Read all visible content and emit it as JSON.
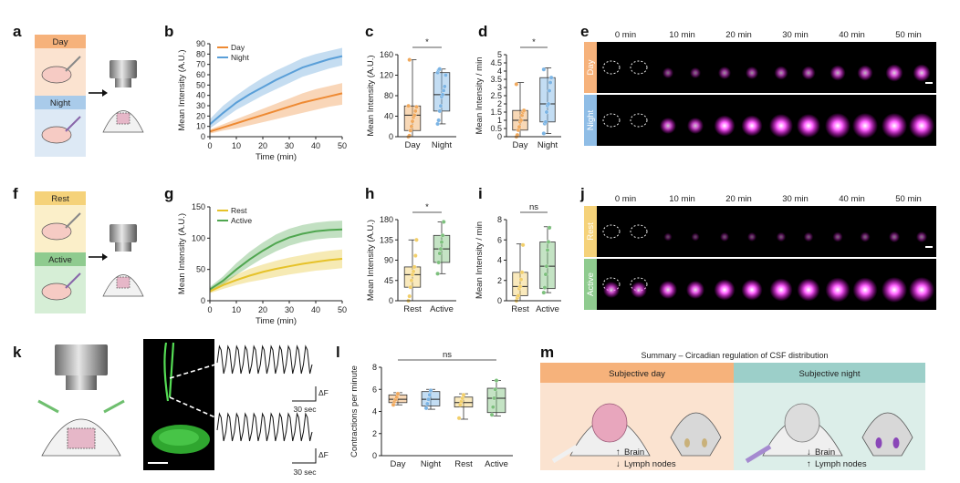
{
  "panel_labels": [
    "a",
    "b",
    "c",
    "d",
    "e",
    "f",
    "g",
    "h",
    "i",
    "j",
    "k",
    "l",
    "m"
  ],
  "schematics": {
    "a": {
      "top": "Day",
      "bottom": "Night"
    },
    "f": {
      "top": "Rest",
      "bottom": "Active"
    },
    "scale_time": "30 sec",
    "delta_f": "ΔF"
  },
  "imaging": {
    "times": [
      "0 min",
      "10 min",
      "20 min",
      "30 min",
      "40 min",
      "50 min"
    ],
    "e_rows": [
      "Day",
      "Night"
    ],
    "j_rows": [
      "Rest",
      "Active"
    ],
    "e_intensity": [
      [
        0,
        0.2,
        0.3,
        0.35,
        0.45,
        0.55
      ],
      [
        0,
        0.5,
        0.75,
        0.9,
        1.0,
        1.0
      ]
    ],
    "j_intensity": [
      [
        0,
        0.05,
        0.1,
        0.12,
        0.15,
        0.2
      ],
      [
        0.5,
        0.6,
        0.75,
        0.85,
        0.95,
        1.0
      ]
    ]
  },
  "summary": {
    "title": "Summary – Circadian regulation of CSF distribution",
    "day_header": "Subjective day",
    "night_header": "Subjective night",
    "day_brain": "Brain",
    "day_nodes": "Lymph nodes",
    "night_brain": "Brain",
    "night_nodes": "Lymph nodes",
    "day_brain_arrow": "↑",
    "day_nodes_arrow": "↓",
    "night_brain_arrow": "↓",
    "night_nodes_arrow": "↑"
  },
  "chart_data": [
    {
      "id": "b",
      "type": "line",
      "xlabel": "Time (min)",
      "ylabel": "Mean Intensity (A.U.)",
      "xlim": [
        0,
        50
      ],
      "ylim": [
        0,
        90
      ],
      "xticks": [
        0,
        10,
        20,
        30,
        40,
        50
      ],
      "yticks": [
        0,
        10,
        20,
        30,
        40,
        50,
        60,
        70,
        80,
        90
      ],
      "legend": "top-left",
      "x": [
        0,
        5,
        10,
        15,
        20,
        25,
        30,
        35,
        40,
        45,
        50
      ],
      "series": [
        {
          "name": "Day",
          "color": "#ee8a33",
          "values": [
            5,
            9,
            13,
            17,
            21,
            25,
            29,
            33,
            36,
            39,
            42
          ],
          "lower": [
            3,
            6,
            8,
            11,
            14,
            17,
            20,
            23,
            26,
            29,
            31
          ],
          "upper": [
            7,
            12,
            17,
            22,
            27,
            32,
            37,
            42,
            46,
            49,
            52
          ]
        },
        {
          "name": "Night",
          "color": "#5a9fd8",
          "values": [
            12,
            23,
            33,
            41,
            48,
            55,
            61,
            67,
            71,
            75,
            78
          ],
          "lower": [
            8,
            17,
            26,
            33,
            40,
            46,
            52,
            58,
            62,
            66,
            69
          ],
          "upper": [
            17,
            30,
            40,
            49,
            57,
            64,
            70,
            76,
            80,
            83,
            86
          ]
        }
      ]
    },
    {
      "id": "c",
      "type": "box",
      "ylabel": "Mean Intensity (A.U.)",
      "ylim": [
        0,
        160
      ],
      "yticks": [
        0,
        40,
        80,
        120,
        160
      ],
      "categories": [
        "Day",
        "Night"
      ],
      "significance": "*",
      "boxes": [
        {
          "color": "#f0a95e",
          "min": 0,
          "q1": 12,
          "median": 42,
          "q3": 60,
          "max": 150,
          "points": [
            0,
            2,
            12,
            20,
            30,
            38,
            42,
            50,
            58,
            60,
            150
          ]
        },
        {
          "color": "#7bb4e4",
          "min": 25,
          "q1": 50,
          "median": 82,
          "q3": 125,
          "max": 132,
          "points": [
            25,
            32,
            50,
            60,
            78,
            82,
            90,
            98,
            120,
            125,
            130,
            132
          ]
        }
      ]
    },
    {
      "id": "d",
      "type": "box",
      "ylabel": "Mean Intensity / min",
      "ylim": [
        0,
        5
      ],
      "yticks": [
        0,
        0.5,
        1,
        1.5,
        2,
        2.5,
        3,
        3.5,
        4,
        4.5,
        5
      ],
      "categories": [
        "Day",
        "Night"
      ],
      "significance": "*",
      "boxes": [
        {
          "color": "#f0a95e",
          "min": 0,
          "q1": 0.4,
          "median": 1.0,
          "q3": 1.6,
          "max": 3.3,
          "points": [
            0,
            0.1,
            0.4,
            0.6,
            0.9,
            1.0,
            1.3,
            1.5,
            1.6,
            3.2
          ]
        },
        {
          "color": "#7bb4e4",
          "min": 0.2,
          "q1": 0.9,
          "median": 2.0,
          "q3": 3.6,
          "max": 4.2,
          "points": [
            0.2,
            0.8,
            0.9,
            1.5,
            1.9,
            2.0,
            2.8,
            3.3,
            3.6,
            4.1
          ]
        }
      ]
    },
    {
      "id": "g",
      "type": "line",
      "xlabel": "Time (min)",
      "ylabel": "Mean Intensity (A.U.)",
      "xlim": [
        0,
        50
      ],
      "ylim": [
        0,
        150
      ],
      "xticks": [
        0,
        10,
        20,
        30,
        40,
        50
      ],
      "yticks": [
        0,
        50,
        100,
        150
      ],
      "legend": "top-left",
      "x": [
        0,
        5,
        10,
        15,
        20,
        25,
        30,
        35,
        40,
        45,
        50
      ],
      "series": [
        {
          "name": "Rest",
          "color": "#e6c229",
          "values": [
            15,
            25,
            33,
            40,
            46,
            51,
            55,
            59,
            62,
            65,
            67
          ],
          "lower": [
            12,
            19,
            25,
            30,
            34,
            38,
            42,
            45,
            48,
            50,
            52
          ],
          "upper": [
            18,
            31,
            42,
            51,
            58,
            64,
            69,
            73,
            77,
            80,
            82
          ]
        },
        {
          "name": "Active",
          "color": "#4fa64f",
          "values": [
            18,
            32,
            50,
            66,
            80,
            92,
            101,
            107,
            111,
            113,
            114
          ],
          "lower": [
            15,
            26,
            41,
            55,
            68,
            79,
            88,
            94,
            98,
            100,
            101
          ],
          "upper": [
            22,
            39,
            60,
            78,
            93,
            106,
            115,
            121,
            125,
            127,
            128
          ]
        }
      ]
    },
    {
      "id": "h",
      "type": "box",
      "ylabel": "Mean Intensity (A.U.)",
      "ylim": [
        0,
        180
      ],
      "yticks": [
        0,
        45,
        90,
        135,
        180
      ],
      "categories": [
        "Rest",
        "Active"
      ],
      "significance": "*",
      "boxes": [
        {
          "color": "#f2cf6a",
          "min": 0,
          "q1": 30,
          "median": 58,
          "q3": 75,
          "max": 135,
          "points": [
            0,
            10,
            30,
            45,
            58,
            65,
            75,
            100,
            135
          ]
        },
        {
          "color": "#7dc07d",
          "min": 60,
          "q1": 85,
          "median": 115,
          "q3": 145,
          "max": 175,
          "points": [
            60,
            85,
            105,
            115,
            130,
            145,
            175
          ]
        }
      ]
    },
    {
      "id": "i",
      "type": "box",
      "ylabel": "Mean Intensity / min",
      "ylim": [
        0,
        8
      ],
      "yticks": [
        0,
        2,
        4,
        6,
        8
      ],
      "categories": [
        "Rest",
        "Active"
      ],
      "significance": "ns",
      "boxes": [
        {
          "color": "#f2cf6a",
          "min": 0,
          "q1": 0.5,
          "median": 1.4,
          "q3": 2.8,
          "max": 5.6,
          "points": [
            0,
            0.3,
            0.5,
            1.2,
            1.4,
            2.1,
            2.8,
            5.5
          ]
        },
        {
          "color": "#7dc07d",
          "min": 0.8,
          "q1": 1.2,
          "median": 3.4,
          "q3": 5.8,
          "max": 7.3,
          "points": [
            0.8,
            1.3,
            2.6,
            3.4,
            5.0,
            5.8,
            7.2
          ]
        }
      ]
    },
    {
      "id": "l",
      "type": "box",
      "ylabel": "Contractions per minute",
      "ylim": [
        0,
        8
      ],
      "yticks": [
        0,
        2,
        4,
        6,
        8
      ],
      "categories": [
        "Day",
        "Night",
        "Rest",
        "Active"
      ],
      "significance": "ns",
      "boxes": [
        {
          "color": "#f0a95e",
          "min": 4.6,
          "q1": 4.8,
          "median": 5.1,
          "q3": 5.5,
          "max": 5.7,
          "points": [
            4.6,
            4.9,
            5.1,
            5.3,
            5.6
          ]
        },
        {
          "color": "#7bb4e4",
          "min": 4.2,
          "q1": 4.5,
          "median": 5.1,
          "q3": 5.8,
          "max": 6.0,
          "points": [
            4.3,
            4.7,
            5.1,
            5.5,
            5.9
          ]
        },
        {
          "color": "#f2cf6a",
          "min": 3.3,
          "q1": 4.4,
          "median": 4.8,
          "q3": 5.3,
          "max": 5.6,
          "points": [
            3.4,
            4.6,
            4.9,
            5.2,
            5.5
          ]
        },
        {
          "color": "#7dc07d",
          "min": 3.6,
          "q1": 3.9,
          "median": 5.2,
          "q3": 6.1,
          "max": 6.8,
          "points": [
            3.7,
            4.4,
            5.2,
            6.0,
            6.8
          ]
        }
      ]
    }
  ]
}
